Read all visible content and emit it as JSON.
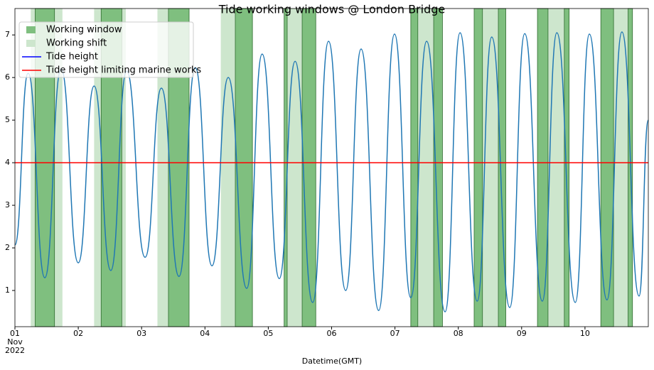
{
  "chart_data": {
    "type": "line",
    "title": "Tide working windows @ London Bridge",
    "x_label": "Datetime(GMT)",
    "xlim": [
      "2022-11-01 00:00",
      "2022-11-11 00:00"
    ],
    "xticks": [
      {
        "value": "2022-11-01 00:00",
        "label": "01"
      },
      {
        "value": "2022-11-02 00:00",
        "label": "02"
      },
      {
        "value": "2022-11-03 00:00",
        "label": "03"
      },
      {
        "value": "2022-11-04 00:00",
        "label": "04"
      },
      {
        "value": "2022-11-05 00:00",
        "label": "05"
      },
      {
        "value": "2022-11-06 00:00",
        "label": "06"
      },
      {
        "value": "2022-11-07 00:00",
        "label": "07"
      },
      {
        "value": "2022-11-08 00:00",
        "label": "08"
      },
      {
        "value": "2022-11-09 00:00",
        "label": "09"
      },
      {
        "value": "2022-11-10 00:00",
        "label": "10"
      }
    ],
    "xtick_sublabels": [
      "Nov",
      "2022"
    ],
    "ylim": [
      0.15,
      7.62
    ],
    "yticks": [
      1,
      2,
      3,
      4,
      5,
      6,
      7
    ],
    "legend": "upper left",
    "spans": [
      {
        "name": "Working shift",
        "color": "#cde6cd",
        "ranges": [
          [
            "2022-11-01 06:00",
            "2022-11-01 18:00"
          ],
          [
            "2022-11-02 06:00",
            "2022-11-02 18:00"
          ],
          [
            "2022-11-03 06:00",
            "2022-11-03 18:00"
          ],
          [
            "2022-11-04 06:00",
            "2022-11-04 18:00"
          ],
          [
            "2022-11-05 06:00",
            "2022-11-05 18:00"
          ],
          [
            "2022-11-07 06:00",
            "2022-11-07 18:00"
          ],
          [
            "2022-11-08 06:00",
            "2022-11-08 18:00"
          ],
          [
            "2022-11-09 06:00",
            "2022-11-09 18:00"
          ],
          [
            "2022-11-10 06:00",
            "2022-11-10 18:00"
          ]
        ]
      },
      {
        "name": "Working window",
        "color": "#7fbf7f",
        "ranges": [
          [
            "2022-11-01 07:40",
            "2022-11-01 15:00"
          ],
          [
            "2022-11-02 08:40",
            "2022-11-02 16:30"
          ],
          [
            "2022-11-03 10:10",
            "2022-11-03 18:00"
          ],
          [
            "2022-11-04 11:30",
            "2022-11-04 18:00"
          ],
          [
            "2022-11-05 06:00",
            "2022-11-05 07:10"
          ],
          [
            "2022-11-05 12:50",
            "2022-11-05 18:00"
          ],
          [
            "2022-11-07 06:00",
            "2022-11-07 08:40"
          ],
          [
            "2022-11-07 14:40",
            "2022-11-07 18:00"
          ],
          [
            "2022-11-08 06:00",
            "2022-11-08 09:10"
          ],
          [
            "2022-11-08 15:10",
            "2022-11-08 18:00"
          ],
          [
            "2022-11-09 06:00",
            "2022-11-09 10:00"
          ],
          [
            "2022-11-09 16:10",
            "2022-11-09 18:00"
          ],
          [
            "2022-11-10 06:00",
            "2022-11-10 10:50"
          ],
          [
            "2022-11-10 16:20",
            "2022-11-10 18:00"
          ]
        ]
      }
    ],
    "series": [
      {
        "name": "Tide height",
        "color": "#1f77b4",
        "legend_color": "#0000ff",
        "x": [
          "2022-11-01 00:00",
          "2022-11-01 05:00",
          "2022-11-01 11:20",
          "2022-11-01 17:30",
          "2022-11-02 00:00",
          "2022-11-02 06:00",
          "2022-11-02 12:20",
          "2022-11-02 18:20",
          "2022-11-03 01:20",
          "2022-11-03 07:30",
          "2022-11-03 14:10",
          "2022-11-03 20:20",
          "2022-11-04 02:40",
          "2022-11-04 08:50",
          "2022-11-04 15:50",
          "2022-11-04 21:40",
          "2022-11-05 04:10",
          "2022-11-05 10:10",
          "2022-11-05 16:50",
          "2022-11-05 22:50",
          "2022-11-06 05:20",
          "2022-11-06 11:10",
          "2022-11-06 17:50",
          "2022-11-06 23:50",
          "2022-11-07 06:00",
          "2022-11-07 12:00",
          "2022-11-07 19:00",
          "2022-11-08 00:40",
          "2022-11-08 07:10",
          "2022-11-08 12:40",
          "2022-11-08 19:30",
          "2022-11-09 01:10",
          "2022-11-09 07:50",
          "2022-11-09 13:20",
          "2022-11-09 20:20",
          "2022-11-10 01:40",
          "2022-11-10 08:20",
          "2022-11-10 14:00",
          "2022-11-10 20:30",
          "2022-11-11 00:00"
        ],
        "values": [
          2.07,
          6.1,
          1.3,
          6.2,
          1.65,
          5.8,
          1.47,
          6.15,
          1.78,
          5.75,
          1.33,
          6.23,
          1.58,
          6.0,
          1.05,
          6.55,
          1.28,
          6.38,
          0.72,
          6.85,
          1.0,
          6.67,
          0.53,
          7.02,
          0.83,
          6.85,
          0.5,
          7.05,
          0.75,
          6.95,
          0.6,
          7.03,
          0.75,
          7.05,
          0.72,
          7.02,
          0.78,
          7.07,
          0.87,
          5.0
        ]
      }
    ],
    "hlines": [
      {
        "name": "Tide height limiting marine works",
        "color": "#ff0000",
        "value": 4
      }
    ]
  }
}
